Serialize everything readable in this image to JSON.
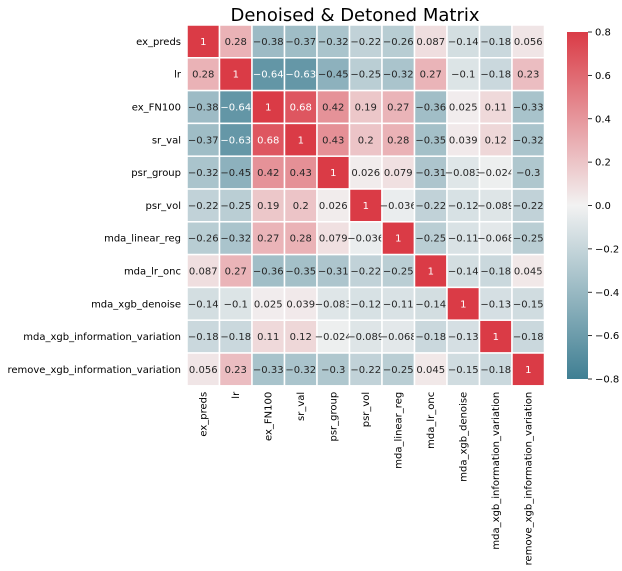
{
  "chart_data": {
    "type": "heatmap",
    "title": "Denoised & Detoned Matrix",
    "row_labels": [
      "ex_preds",
      "lr",
      "ex_FN100",
      "sr_val",
      "psr_group",
      "psr_vol",
      "mda_linear_reg",
      "mda_lr_onc",
      "mda_xgb_denoise",
      "mda_xgb_information_variation",
      "remove_xgb_information_variation"
    ],
    "col_labels": [
      "ex_preds",
      "lr",
      "ex_FN100",
      "sr_val",
      "psr_group",
      "psr_vol",
      "mda_linear_reg",
      "mda_lr_onc",
      "mda_xgb_denoise",
      "mda_xgb_information_variation",
      "remove_xgb_information_variation"
    ],
    "values": [
      [
        1,
        0.28,
        -0.38,
        -0.37,
        -0.32,
        -0.22,
        -0.26,
        0.087,
        -0.14,
        -0.18,
        0.056
      ],
      [
        0.28,
        1,
        -0.64,
        -0.63,
        -0.45,
        -0.25,
        -0.32,
        0.27,
        -0.1,
        -0.18,
        0.23
      ],
      [
        -0.38,
        -0.64,
        1,
        0.68,
        0.42,
        0.19,
        0.27,
        -0.36,
        0.025,
        0.11,
        -0.33
      ],
      [
        -0.37,
        -0.63,
        0.68,
        1,
        0.43,
        0.2,
        0.28,
        -0.35,
        0.039,
        0.12,
        -0.32
      ],
      [
        -0.32,
        -0.45,
        0.42,
        0.43,
        1,
        0.026,
        0.079,
        -0.31,
        -0.083,
        -0.024,
        -0.3
      ],
      [
        -0.22,
        -0.25,
        0.19,
        0.2,
        0.026,
        1,
        -0.036,
        -0.22,
        -0.12,
        -0.089,
        -0.22
      ],
      [
        -0.26,
        -0.32,
        0.27,
        0.28,
        0.079,
        -0.036,
        1,
        -0.25,
        -0.11,
        -0.068,
        -0.25
      ],
      [
        0.087,
        0.27,
        -0.36,
        -0.35,
        -0.31,
        -0.22,
        -0.25,
        1,
        -0.14,
        -0.18,
        0.045
      ],
      [
        -0.14,
        -0.1,
        0.025,
        0.039,
        -0.083,
        -0.12,
        -0.11,
        -0.14,
        1,
        -0.13,
        -0.15
      ],
      [
        -0.18,
        -0.18,
        0.11,
        0.12,
        -0.024,
        -0.089,
        -0.068,
        -0.18,
        -0.13,
        1,
        -0.18
      ],
      [
        0.056,
        0.23,
        -0.33,
        -0.32,
        -0.3,
        -0.22,
        -0.25,
        0.045,
        -0.15,
        -0.18,
        1
      ]
    ],
    "vmin": -0.8,
    "vmax": 0.8,
    "colorbar_ticks": [
      "0.8",
      "0.6",
      "0.4",
      "0.2",
      "0.0",
      "−0.2",
      "−0.4",
      "−0.6",
      "−0.8"
    ],
    "colors": {
      "negative": "#3f7f93",
      "neutral": "#f2f2f2",
      "positive": "#da3b46",
      "grid": "#ffffff"
    }
  }
}
